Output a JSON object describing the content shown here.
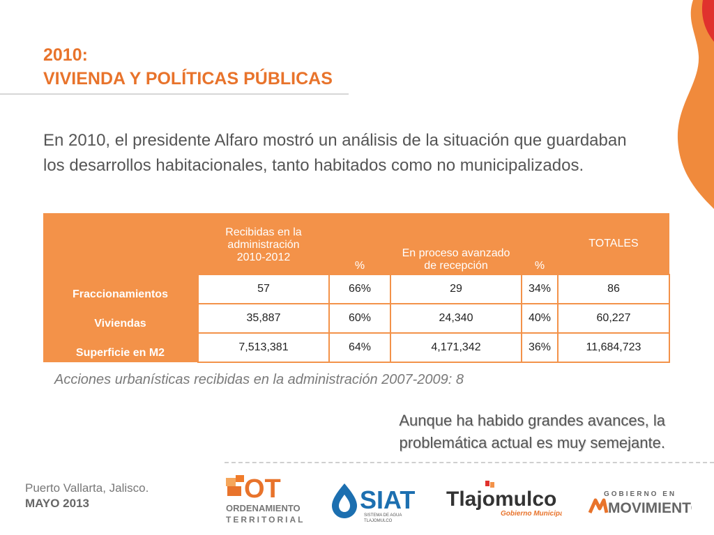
{
  "header": {
    "title_line1": "2010:",
    "title_line2": "VIVIENDA Y POLÍTICAS PÚBLICAS"
  },
  "intro": "En 2010, el presidente Alfaro mostró un análisis de la situación que guardaban los desarrollos habitacionales, tanto habitados como no municipalizados.",
  "table": {
    "headers": [
      "",
      "Recibidas en la administración 2010-2012",
      "%",
      "En proceso avanzado de recepción",
      "%",
      "TOTALES"
    ],
    "rows": [
      {
        "label": "Fraccionamientos",
        "cells": [
          "57",
          "66%",
          "29",
          "34%",
          "86"
        ]
      },
      {
        "label": "Viviendas",
        "cells": [
          "35,887",
          "60%",
          "24,340",
          "40%",
          "60,227"
        ]
      },
      {
        "label": "Superficie en M2",
        "cells": [
          "7,513,381",
          "64%",
          "4,171,342",
          "36%",
          "11,684,723"
        ]
      }
    ]
  },
  "note": "Acciones urbanísticas recibidas en la administración 2007-2009: 8",
  "conclusion": {
    "line1": "Aunque ha habido grandes avances, la",
    "line2": "problemática actual es muy semejante."
  },
  "footer": {
    "place": "Puerto Vallarta, Jalisco.",
    "date": "MAYO 2013",
    "logos": {
      "ot": {
        "mark": "OT",
        "line1": "ORDENAMIENTO",
        "line2": "TERRITORIAL"
      },
      "siat": {
        "name": "SIAT",
        "sub1": "SISTEMA DE AGUA",
        "sub2": "TLAJOMULCO"
      },
      "tlajomulco": {
        "name": "Tlajomulco",
        "sub": "Gobierno Municipal"
      },
      "gobierno": {
        "line1": "GOBIERNO EN",
        "line2": "MOVIMIENTO"
      }
    }
  },
  "colors": {
    "accent": "#e8732b",
    "table_header": "#f39249",
    "text_gray": "#555555",
    "siat_blue": "#1c6fb0",
    "logo_gray": "#666666"
  }
}
